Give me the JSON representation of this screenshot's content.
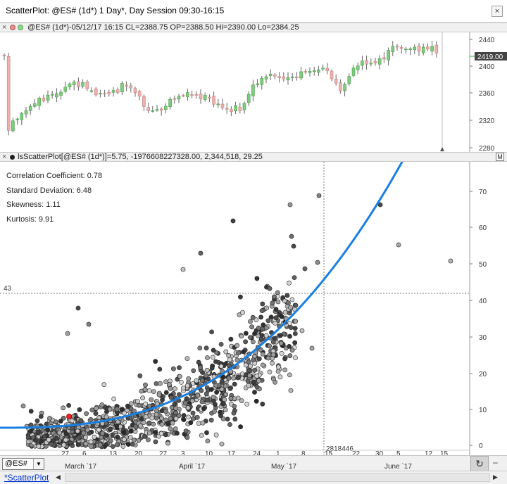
{
  "window": {
    "title": "ScatterPlot: @ES# (1d*) 1 Day*, Day Session 09:30-16:15",
    "close_label": "×"
  },
  "price_panel": {
    "header_text": "@ES# (1d*)-05/12/17 16:15 CL=2388.75 OP=2388.50 Hi=2390.00 Lo=2384.25",
    "close_label": "×",
    "axis_ticks": [
      "2440",
      "2400",
      "2360",
      "2320",
      "2280"
    ],
    "last_price": "2419.00",
    "up_color": "#7fcc7f",
    "down_color": "#f0b0b0"
  },
  "scatter_panel": {
    "header_text": "lsScatterPlot[@ES# (1d*)]=5.75, -1976608227328.00, 2,344,518, 29.25",
    "close_label": "×",
    "m_label": "M",
    "stats": [
      "Correlation Coefficient: 0.78",
      "Standard Deviation: 6.48",
      "Skewness: 1.11",
      "Kurtosis: 9.91"
    ],
    "axis_ticks": [
      "70",
      "60",
      "50",
      "40",
      "30",
      "20",
      "10",
      "0"
    ],
    "crosshair_value": "43",
    "crosshair_readout": "2818446",
    "curve_color": "#1a7fe0",
    "highlight_color": "#ee2222"
  },
  "date_axis": {
    "day_labels": [
      "27",
      "6",
      "13",
      "20",
      "27",
      "3",
      "10",
      "17",
      "24",
      "1",
      "8",
      "15",
      "22",
      "30",
      "5",
      "12",
      "15"
    ],
    "month_labels": [
      "March `17",
      "April `17",
      "May `17",
      "June `17"
    ]
  },
  "bottom_bar": {
    "symbol": "@ES#",
    "dropdown_icon": "chevron-down-icon",
    "refresh_icon": "refresh-icon"
  },
  "tabs": [
    "*ScatterPlot"
  ]
}
